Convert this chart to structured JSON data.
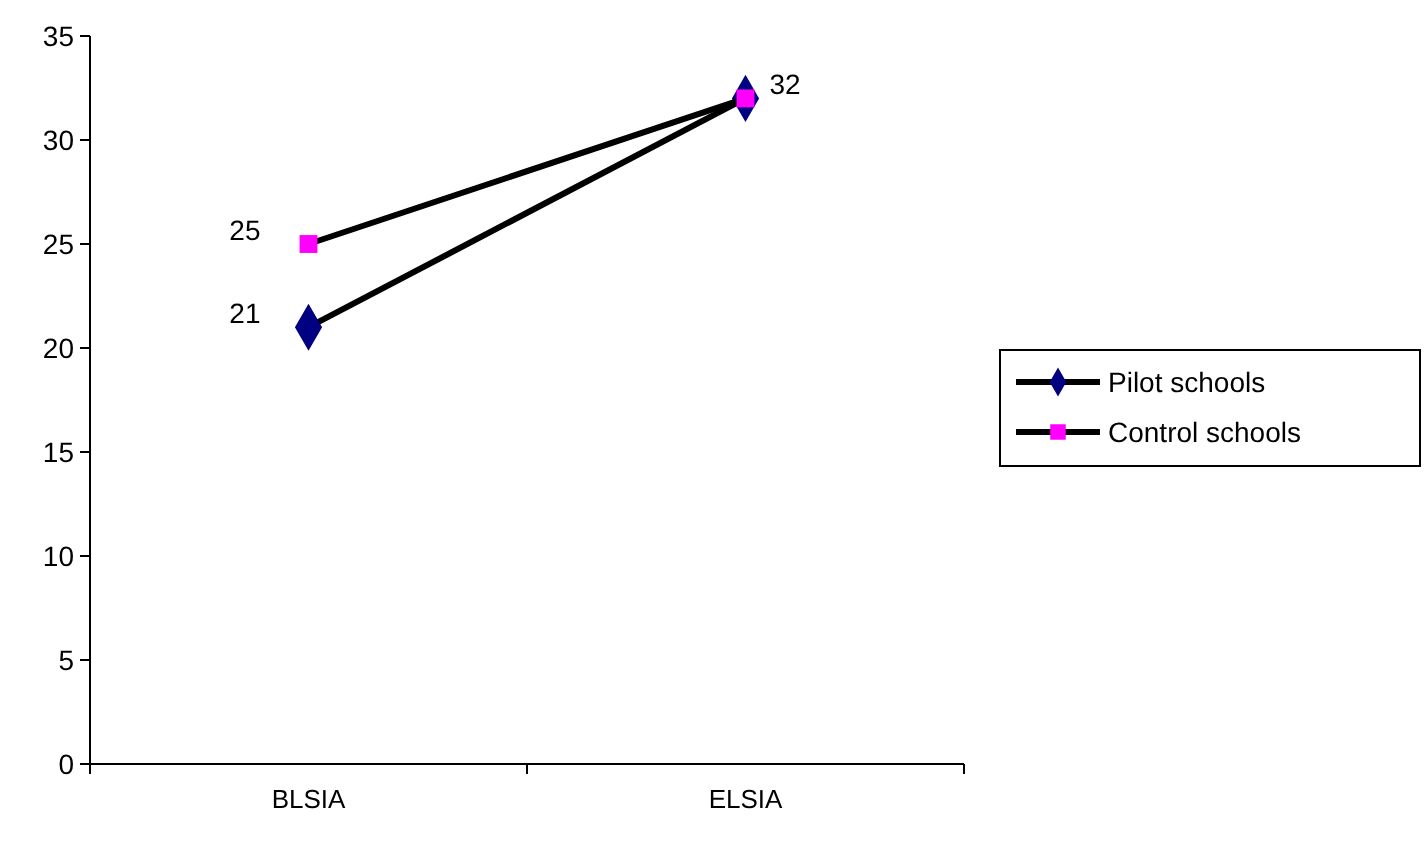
{
  "chart_data": {
    "type": "line",
    "categories": [
      "BLSIA",
      "ELSIA"
    ],
    "series": [
      {
        "name": "Pilot schools",
        "color": "#000080",
        "marker": "diamond",
        "values": [
          21,
          32
        ],
        "value_labels": [
          "21",
          "32"
        ]
      },
      {
        "name": "Control schools",
        "color": "#ff00ff",
        "marker": "square",
        "values": [
          25,
          32
        ],
        "value_labels": [
          "25",
          null
        ]
      }
    ],
    "ylim": [
      0,
      35
    ],
    "yticks": [
      0,
      5,
      10,
      15,
      20,
      25,
      30,
      35
    ],
    "grid": false,
    "legend": "right",
    "line_style": "solid"
  }
}
